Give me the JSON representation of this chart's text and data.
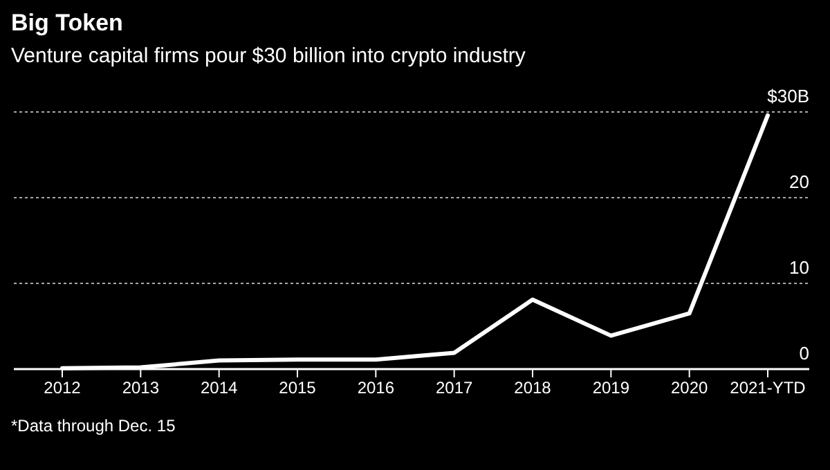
{
  "chart_data": {
    "type": "line",
    "title": "Big Token",
    "subtitle": "Venture capital firms pour $30 billion into crypto industry",
    "categories": [
      "2012",
      "2013",
      "2014",
      "2015",
      "2016",
      "2017",
      "2018",
      "2019",
      "2020",
      "2021-YTD"
    ],
    "series": [
      {
        "color": "#ffffff",
        "values": [
          0.1,
          0.2,
          1.0,
          1.1,
          1.1,
          1.9,
          8.1,
          3.9,
          6.5,
          29.6
        ]
      }
    ],
    "ylim": [
      0,
      30
    ],
    "yticks": [
      0,
      10,
      20,
      {
        "value": 30,
        "label": "$30B"
      }
    ],
    "grid": "y",
    "marker": "none",
    "line_style": "solid",
    "annotations": [
      "*Data through Dec. 15"
    ]
  }
}
